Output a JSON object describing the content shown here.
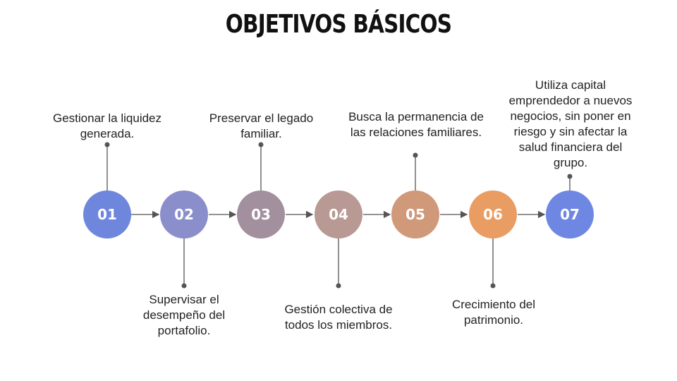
{
  "title": "OBJETIVOS BÁSICOS",
  "steps": [
    {
      "num": "01",
      "text": "Gestionar la liquidez generada.",
      "color": "#6f86dd"
    },
    {
      "num": "02",
      "text": "Supervisar el desempeño del portafolio.",
      "color": "#8a8fcc"
    },
    {
      "num": "03",
      "text": "Preservar el legado familiar.",
      "color": "#a2909f"
    },
    {
      "num": "04",
      "text": "Gestión colectiva de todos los miembros.",
      "color": "#b89993"
    },
    {
      "num": "05",
      "text": "Busca la permanencia de las relaciones familiares.",
      "color": "#d0997a"
    },
    {
      "num": "06",
      "text": "Crecimiento del patrimonio.",
      "color": "#e99d62"
    },
    {
      "num": "07",
      "text": "Utiliza capital emprendedor a nuevos negocios, sin poner en riesgo  y sin afectar la salud financiera del grupo.",
      "color": "#6d87e3"
    }
  ]
}
